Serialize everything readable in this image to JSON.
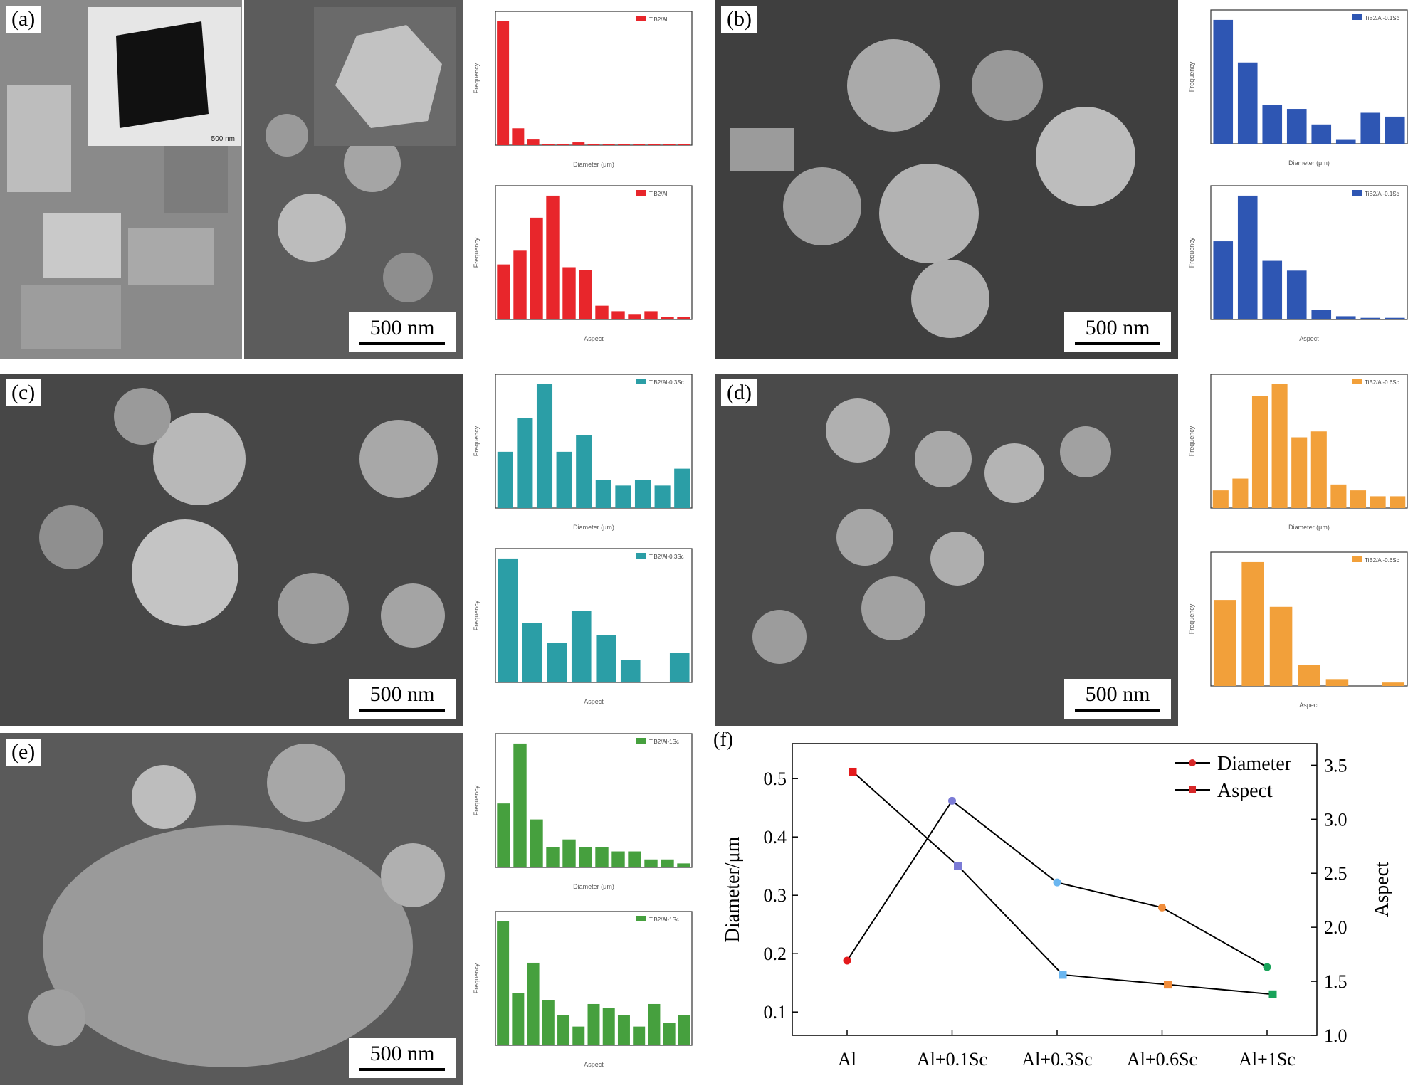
{
  "panels": {
    "a": {
      "label": "(a)",
      "scale": "500 nm",
      "inset_scale": "500 nm"
    },
    "b": {
      "label": "(b)",
      "scale": "500 nm"
    },
    "c": {
      "label": "(c)",
      "scale": "500 nm"
    },
    "d": {
      "label": "(d)",
      "scale": "500 nm"
    },
    "e": {
      "label": "(e)",
      "scale": "500 nm"
    },
    "f": {
      "label": "(f)"
    }
  },
  "histograms": {
    "a_diam": {
      "legend": "TiB2/Al",
      "xlabel": "Diameter (μm)",
      "ylabel": "Frequency",
      "color": "#e8262b",
      "values": [
        0.88,
        0.12,
        0.04,
        0.01,
        0.01,
        0.02,
        0.01,
        0.01,
        0.01,
        0.01,
        0.01,
        0.01,
        0.01
      ]
    },
    "a_asp": {
      "legend": "TiB2/Al",
      "xlabel": "Aspect",
      "ylabel": "Frequency",
      "color": "#e8262b",
      "values": [
        0.2,
        0.25,
        0.37,
        0.45,
        0.19,
        0.18,
        0.05,
        0.03,
        0.02,
        0.03,
        0.01,
        0.01
      ]
    },
    "b_diam": {
      "legend": "TiB2/Al-0.1Sc",
      "xlabel": "Diameter (μm)",
      "ylabel": "Frequency",
      "color": "#2e56b3",
      "values": [
        0.32,
        0.21,
        0.1,
        0.09,
        0.05,
        0.01,
        0.08,
        0.07
      ]
    },
    "b_asp": {
      "legend": "TiB2/Al-0.1Sc",
      "xlabel": "Aspect",
      "ylabel": "Frequency",
      "color": "#2e56b3",
      "values": [
        0.24,
        0.38,
        0.18,
        0.15,
        0.03,
        0.01,
        0.005,
        0.005
      ]
    },
    "c_diam": {
      "legend": "TiB2/Al-0.3Sc",
      "xlabel": "Diameter (μm)",
      "ylabel": "Frequency",
      "color": "#2b9ea6",
      "values": [
        0.1,
        0.16,
        0.22,
        0.1,
        0.13,
        0.05,
        0.04,
        0.05,
        0.04,
        0.07
      ]
    },
    "c_asp": {
      "legend": "TiB2/Al-0.3Sc",
      "xlabel": "Aspect",
      "ylabel": "Frequency",
      "color": "#2b9ea6",
      "values": [
        0.5,
        0.24,
        0.16,
        0.29,
        0.19,
        0.09,
        0.0,
        0.12
      ]
    },
    "d_diam": {
      "legend": "TiB2/Al-0.6Sc",
      "xlabel": "Diameter (μm)",
      "ylabel": "Frequency",
      "color": "#f2a03a",
      "values": [
        0.03,
        0.05,
        0.19,
        0.21,
        0.12,
        0.13,
        0.04,
        0.03,
        0.02,
        0.02
      ]
    },
    "d_asp": {
      "legend": "TiB2/Al-0.6Sc",
      "xlabel": "Aspect",
      "ylabel": "Frequency",
      "color": "#f2a03a",
      "values": [
        0.25,
        0.36,
        0.23,
        0.06,
        0.02,
        0.0,
        0.01
      ]
    },
    "e_diam": {
      "legend": "TiB2/Al-1Sc",
      "xlabel": "Diameter (μm)",
      "ylabel": "Frequency",
      "color": "#46a03e",
      "values": [
        0.16,
        0.31,
        0.12,
        0.05,
        0.07,
        0.05,
        0.05,
        0.04,
        0.04,
        0.02,
        0.02,
        0.01
      ]
    },
    "e_asp": {
      "legend": "TiB2/Al-1Sc",
      "xlabel": "Aspect",
      "ylabel": "Frequency",
      "color": "#46a03e",
      "values": [
        0.33,
        0.14,
        0.22,
        0.12,
        0.08,
        0.05,
        0.11,
        0.1,
        0.08,
        0.05,
        0.11,
        0.06,
        0.08
      ]
    }
  },
  "chart_data": {
    "type": "line",
    "categories": [
      "Al",
      "Al+0.1Sc",
      "Al+0.3Sc",
      "Al+0.6Sc",
      "Al+1Sc"
    ],
    "series": [
      {
        "name": "Diameter",
        "axis": "left",
        "marker": "circle",
        "marker_color": "#d62728",
        "values": [
          0.188,
          0.462,
          0.322,
          0.279,
          0.177
        ]
      },
      {
        "name": "Aspect",
        "axis": "right",
        "marker": "square",
        "marker_color": "#d62728",
        "values": [
          3.44,
          2.57,
          1.56,
          1.47,
          1.38
        ]
      }
    ],
    "point_colors": [
      "#e41a1c",
      "#7b7bd6",
      "#6ab6f0",
      "#f08c3a",
      "#19a35a"
    ],
    "ylabel_left": "Diameter/μm",
    "ylabel_right": "Aspect",
    "ylim_left": [
      0.06,
      0.56
    ],
    "ylim_right": [
      1.0,
      3.7
    ],
    "yticks_left": [
      "0.1",
      "0.2",
      "0.3",
      "0.4",
      "0.5"
    ],
    "yticks_right": [
      "1.0",
      "1.5",
      "2.0",
      "2.5",
      "3.0",
      "3.5"
    ],
    "legend_position": "top-right",
    "grid": false
  }
}
